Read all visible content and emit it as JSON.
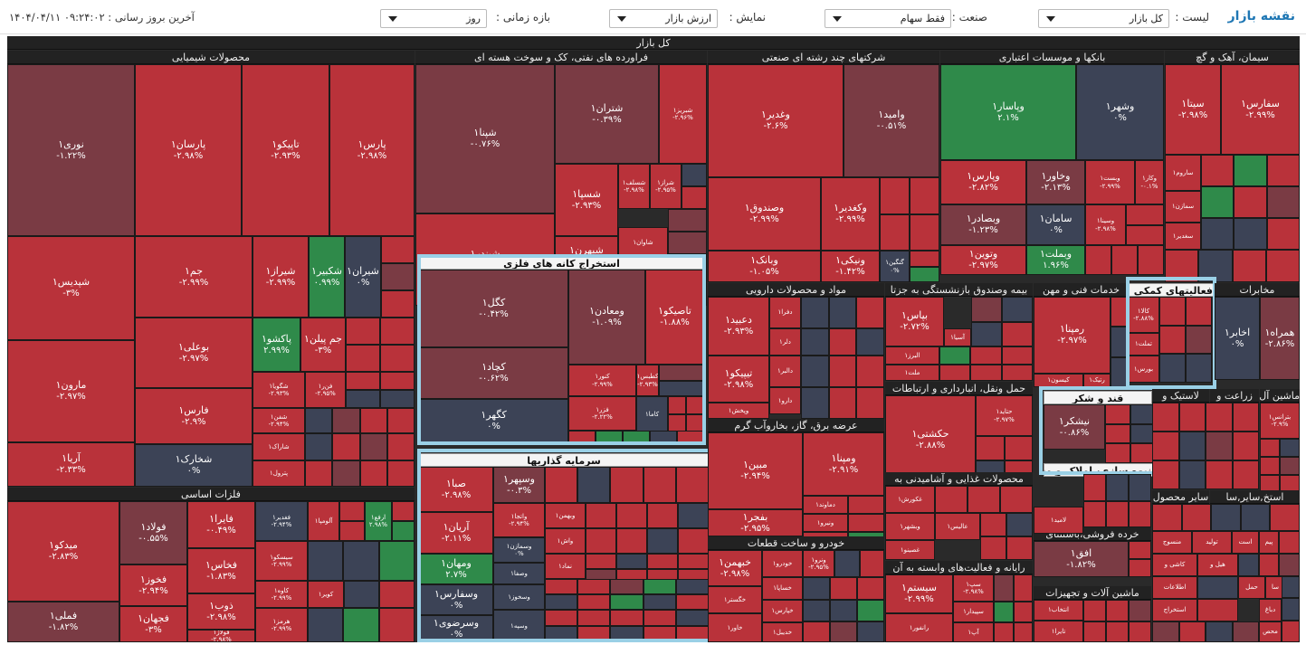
{
  "toolbar": {
    "title": "نقشه بازار",
    "list_label": "لیست :",
    "list_value": "کل بازار",
    "industry_label": "صنعت :",
    "industry_value": "فقط سهام",
    "display_label": "نمایش :",
    "display_value": "ارزش بازار",
    "period_label": "بازه زمانی :",
    "period_value": "روز",
    "last_update": "۱۴۰۴/۰۴/۱۱ ۰۹:۲۴:۰۲ : آخرین بروز رسانی"
  },
  "colors": {
    "red": "#b9323a",
    "darkred": "#7a3b44",
    "slate": "#3c4356",
    "green": "#2f8a4a",
    "highlight": "#9ad0e6"
  },
  "map": {
    "root_title": "کل بازار",
    "sectors": {
      "chem": "محصولات شیمیایی",
      "refinery": "فراورده های نفتی، کک و سوخت هسته ای",
      "multi": "شرکتهای چند رشته ای صنعتی",
      "banks": "بانکها و موسسات اعتباری",
      "cement": "سیمان، آهک و گچ",
      "metal": "فلزات اساسی",
      "mining": "استخراج کانه های فلزی",
      "investment": "سرمایه گذاریها",
      "pharma": "مواد و محصولات دارویی",
      "insurance": "بیمه وصندوق بازنشستگی به جزتا",
      "tech": "خدمات فنی و مهن",
      "activities": "فعالیتهای کمکی به",
      "telecom": "مخابرات",
      "transport": "حمل ونقل، انبارداری و ارتباطات",
      "sugar": "قند و شکر",
      "utility": "عرضه برق، گاز، بخاروآب گرم",
      "food": "محصولات غذایی و آشامیدنی به",
      "auto": "خودرو و ساخت قطعات",
      "computer": "رایانه و فعالیت‌های وابسته به آن",
      "retail": "خرده فروشی،باستثنای",
      "machinery": "ماشین آلات و تجهیزات",
      "machinery2": "ماشین آل",
      "farm": "زراعت و",
      "rubber": "لاستیک و",
      "products": "سایر محصول",
      "mass": "انبوه سازی، املاک و مستغ",
      "misc": [
        "استخ",
        "سایر",
        "سا"
      ]
    },
    "tiles": {
      "nouri": [
        "نوری۱",
        "-۱.۲۲%"
      ],
      "parsan": [
        "پارسان۱",
        "-۲.۹۸%"
      ],
      "tapiko": [
        "تاپیکو۱",
        "-۲.۹۳%"
      ],
      "pars": [
        "پارس۱",
        "-۲.۹۸%"
      ],
      "shepadis": [
        "شپدیس۱",
        "-۳%"
      ],
      "jam": [
        "جم۱",
        "-۲.۹۹%"
      ],
      "shiraz": [
        "شیراز۱",
        "-۲.۹۹%"
      ],
      "shekabir": [
        "شکبیر۱",
        "۰.۹۹%"
      ],
      "shiran": [
        "شیران۱",
        "۰%"
      ],
      "pakshou": [
        "پاکشو۱",
        "۲.۹۹%"
      ],
      "jampilen": [
        "جم پیلن۱",
        "-۳%"
      ],
      "marun": [
        "مارون۱",
        "-۲.۹۷%"
      ],
      "buali": [
        "بوعلی۱",
        "-۲.۹۷%"
      ],
      "shegoya": [
        "شگویا۱",
        "-۲.۹۳%"
      ],
      "fanar": [
        "فن‌ر۱",
        "-۲.۹۵%"
      ],
      "fars": [
        "فارس۱",
        "-۲.۹%"
      ],
      "shafan": [
        "شفن۱",
        "-۲.۹۴%"
      ],
      "arya": [
        "آریا۱",
        "-۲.۳۳%"
      ],
      "shekharak": [
        "شخارک۱",
        "۰%"
      ],
      "sharak": [
        "شاراک۱",
        ""
      ],
      "petrol": [
        "پترول۱",
        ""
      ],
      "shepna": [
        "شپنا۱",
        "-۰.۷۶%"
      ],
      "shetran": [
        "شتران۱",
        "-۰.۳۹%"
      ],
      "shebriz": [
        "شبریز۱",
        "-۲.۹۶%"
      ],
      "sheband": [
        "شبندر۱",
        "-۲.۹%"
      ],
      "shesepa": [
        "شسپا۱",
        "-۲.۹۳%"
      ],
      "sheslaf": [
        "شسلف۱",
        "-۲.۹۸%"
      ],
      "sherag": [
        "شراز۱",
        "-۲.۹۵%"
      ],
      "shebhran": [
        "شبهرن۱",
        "-۳%"
      ],
      "shavan": [
        "شاوان۱",
        ""
      ],
      "vaghadir": [
        "وغدیر۱",
        "-۲.۶%"
      ],
      "vomid": [
        "وامید۱",
        "-۰.۵۱%"
      ],
      "vsandogh": [
        "وصندوق۱",
        "-۲.۹۹%"
      ],
      "vakadir": [
        "وکغدیر۱",
        "-۲.۹۹%"
      ],
      "vbank": [
        "وبانک۱",
        "-۱.۰۵%"
      ],
      "vniki": [
        "ونیکی۱",
        "-۱.۴۲%"
      ],
      "gengin": [
        "گنگین۱",
        "۰%"
      ],
      "vpasar": [
        "وپاسار۱",
        "۲.۱%"
      ],
      "vshahr": [
        "وشهر۱",
        "۰%"
      ],
      "vpars": [
        "وپارس۱",
        "-۲.۸۲%"
      ],
      "vkhavar": [
        "وخاور۱",
        "-۲.۱۳%"
      ],
      "vest": [
        "وبست۱",
        "-۲.۹۹%"
      ],
      "vkar": [
        "وکار۱",
        "-۰.۱%"
      ],
      "vbsadr": [
        "وبصادر۱",
        "-۱.۲۳%"
      ],
      "saman": [
        "سامان۱",
        "۰%"
      ],
      "vsina": [
        "وسینا۱",
        "-۲.۹۸%"
      ],
      "vtoen": [
        "وتوین۱",
        "-۲.۹۷%"
      ],
      "vbmelt": [
        "وبملت۱",
        "۱.۹۶%"
      ],
      "sita": [
        "سیتا۱",
        "-۲.۹۸%"
      ],
      "sfars": [
        "سفارس۱",
        "-۲.۹۹%"
      ],
      "saroom": [
        "ساروم۱",
        ""
      ],
      "semazan": [
        "سمازن۱",
        ""
      ],
      "sghadir": [
        "سغدیر۱",
        ""
      ],
      "meydko": [
        "میدکو۱",
        "-۲.۸۳%"
      ],
      "foolad": [
        "فولاد۱",
        "-۰.۵۵%"
      ],
      "faira": [
        "فایرا۱",
        "-۰.۴۹%"
      ],
      "fghadir": [
        "فغدیر۱",
        "-۲.۹۴%"
      ],
      "aloompa": [
        "آلومپا۱",
        ""
      ],
      "arfa": [
        "ارفع۱",
        "۲.۹۸%"
      ],
      "fkhas": [
        "فخاس۱",
        "-۱.۸۳%"
      ],
      "sepiko": [
        "سیسکو۱",
        "-۲.۹۹%"
      ],
      "fkhouz": [
        "فخوز۱",
        "-۲.۹۴%"
      ],
      "zob": [
        "ذوب۱",
        "-۲.۹۸%"
      ],
      "kaveh": [
        "کاوه۱",
        "-۲.۹۹%"
      ],
      "koviri": [
        "کویر۱",
        ""
      ],
      "femli": [
        "فملی۱",
        "-۱.۸۲%"
      ],
      "fjahan": [
        "فجهان۱",
        "-۳%"
      ],
      "foolaz": [
        "فولاژ۱",
        "-۲.۹۸%"
      ],
      "hormoz": [
        "هرمز۱",
        "-۲.۹۹%"
      ],
      "kgol": [
        "کگل۱",
        "-۰.۴۲%"
      ],
      "vmaaden": [
        "ومعادن۱",
        "-۱.۰۹%"
      ],
      "tapiko2": [
        "تاصیکو۱",
        "-۱.۸۸%"
      ],
      "kchad": [
        "کچاد۱",
        "-۰.۶۲%"
      ],
      "kenor": [
        "کنور۱",
        "-۲.۹۹%"
      ],
      "ktabas": [
        "کطبس۱",
        "-۲.۹۳%"
      ],
      "fazer": [
        "فزر۱",
        "-۲.۲۲%"
      ],
      "kama": [
        "کاما۱",
        ""
      ],
      "kgohar": [
        "کگهر۱",
        "۰%"
      ],
      "saba": [
        "صبا۱",
        "-۲.۹۸%"
      ],
      "vsepahr": [
        "وسپهر۱",
        "-۰.۳%"
      ],
      "vtaja": [
        "واتجا۱",
        "-۲.۹۴%"
      ],
      "vbahman": [
        "وبهمن۱",
        ""
      ],
      "aryan": [
        "آریان۱",
        "-۲.۱۱%"
      ],
      "vsmazan": [
        "وسمازن۱",
        "۰%"
      ],
      "vmahan": [
        "ومهان۱",
        "۲.۷%"
      ],
      "vsafa": [
        "وصفا۱",
        ""
      ],
      "nimad": [
        "نماد۱",
        ""
      ],
      "vassh": [
        "واش۱",
        ""
      ],
      "vsafares": [
        "وسفارس۱",
        "۰%"
      ],
      "vsakhouz": [
        "وسخوز۱",
        ""
      ],
      "vsarazavi": [
        "وسرضوی۱",
        "۰%"
      ],
      "vsapeh": [
        "وسپه۱",
        ""
      ],
      "daaboul": [
        "دعبید۱",
        "-۲.۹۳%"
      ],
      "dafra": [
        "دفرا۱",
        ""
      ],
      "tipiko": [
        "تیپیکو۱",
        "-۲.۹۸%"
      ],
      "dalir": [
        "دلر۱",
        ""
      ],
      "dalibro": [
        "دالبر۱",
        ""
      ],
      "dara": [
        "دارو۱",
        ""
      ],
      "vpakhsh": [
        "وپخش۱",
        ""
      ],
      "bpas": [
        "بپاس۱",
        "-۲.۷۲%"
      ],
      "asia": [
        "آسیا۱",
        ""
      ],
      "albors": [
        "البرز۱",
        ""
      ],
      "mellat": [
        "ملت۱",
        ""
      ],
      "ramapna": [
        "رمپنا۱",
        "-۲.۹۷%"
      ],
      "rtik": [
        "رتیک۱",
        ""
      ],
      "kasiyon": [
        "کیسون۱",
        ""
      ],
      "kala": [
        "کالا۱",
        "-۲.۸۸%"
      ],
      "tamalat": [
        "تملت۱",
        ""
      ],
      "bours": [
        "بورس۱",
        ""
      ],
      "akhaber": [
        "اخابر۱",
        "۰%"
      ],
      "hamrah": [
        "همراه۱",
        "-۲.۸۶%"
      ],
      "hakshti": [
        "حکشتی۱",
        "-۲.۸۸%"
      ],
      "hetayd": [
        "حتاید۱",
        "-۲.۹۷%"
      ],
      "nishkar": [
        "نیشکر۱",
        "-۰.۸۶%"
      ],
      "mabin": [
        "مبین۱",
        "-۲.۹۴%"
      ],
      "vampena": [
        "ومپنا۱",
        "-۲.۹۱%"
      ],
      "bfajr": [
        "بفجر۱",
        "-۲.۹۵%"
      ],
      "damavand": [
        "دماوند۱",
        ""
      ],
      "vtoiro": [
        "ونیرو۱",
        ""
      ],
      "bgilan": [
        "بگیلان۱",
        ""
      ],
      "ghakoroush": [
        "غکورش۱",
        ""
      ],
      "valis": [
        "عالیس۱",
        ""
      ],
      "veshahr": [
        "وبشهر۱",
        ""
      ],
      "ghasina": [
        "غصینو۱",
        ""
      ],
      "khebhman": [
        "خبهمن۱",
        "-۲.۹۸%"
      ],
      "khodro": [
        "خودرو۱",
        ""
      ],
      "vtrazh": [
        "ونرو۱",
        "-۲.۹۵%"
      ],
      "khasapa": [
        "خساپا۱",
        ""
      ],
      "khgostar": [
        "خگستر۱",
        ""
      ],
      "khpars": [
        "خپارس۱",
        ""
      ],
      "khavar": [
        "خاور۱",
        ""
      ],
      "khadibl": [
        "خدیبل۱",
        ""
      ],
      "sistam": [
        "سیستم۱",
        "-۲.۹۹%"
      ],
      "sap": [
        "سپ۱",
        "-۲.۹۸%"
      ],
      "spidar": [
        "سپیدار۱",
        ""
      ],
      "ap": [
        "آپ۱",
        ""
      ],
      "ranfour": [
        "رانفور۱",
        ""
      ],
      "afgh": [
        "افق۱",
        "-۱.۸۲%"
      ],
      "lamid": [
        "لامید۱",
        ""
      ],
      "entekhab": [
        "انتخاب۱",
        ""
      ],
      "taira": [
        "تایرا۱",
        ""
      ],
      "betranes": [
        "بترانس۱",
        "-۲.۹%"
      ],
      "boshehr": [
        "بوشهر۱",
        ""
      ],
      "kaveh2": [
        "کاشی و",
        ""
      ],
      "heel": [
        "هیل و",
        ""
      ],
      "tavalid": [
        "تولید",
        ""
      ],
      "mnsoj": [
        "منسوج",
        ""
      ],
      "ast": [
        "است",
        ""
      ],
      "pim": [
        "پیم",
        ""
      ],
      "ettelaat": [
        "اطلاعات",
        ""
      ],
      "estkhraj": [
        "استخراج",
        ""
      ],
      "dabagh": [
        "دباغ",
        ""
      ],
      "mahsol": [
        "محص",
        ""
      ],
      "hml": [
        "حمل",
        ""
      ],
      "saa": [
        "سا",
        ""
      ]
    }
  }
}
